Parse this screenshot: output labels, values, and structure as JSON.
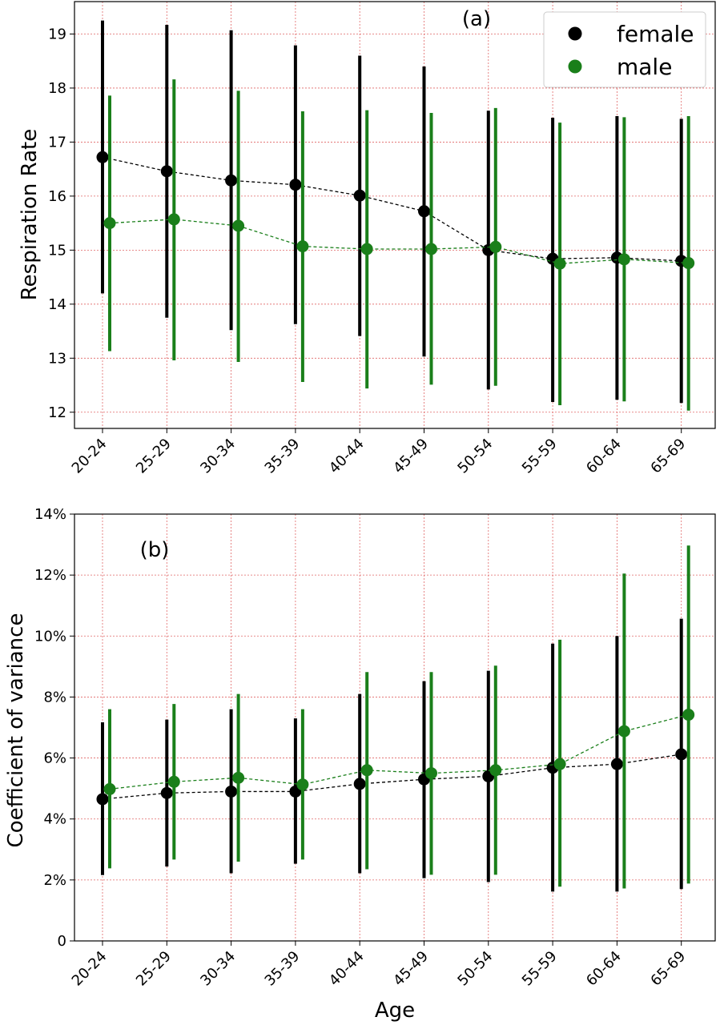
{
  "chart_data": [
    {
      "type": "line",
      "panel_label": "(a)",
      "title": "",
      "xlabel": "",
      "ylabel": "Respiration Rate",
      "categories": [
        "20-24",
        "25-29",
        "30-34",
        "35-39",
        "40-44",
        "45-49",
        "50-54",
        "55-59",
        "60-64",
        "65-69"
      ],
      "ylim": [
        11.7,
        19.6
      ],
      "yticks": [
        12,
        13,
        14,
        15,
        16,
        17,
        18,
        19
      ],
      "ytick_labels": [
        "12",
        "13",
        "14",
        "15",
        "16",
        "17",
        "18",
        "19"
      ],
      "grid": true,
      "legend": "top-right",
      "series": [
        {
          "name": "female",
          "color": "#000000",
          "values": [
            16.72,
            16.46,
            16.29,
            16.21,
            16.01,
            15.72,
            15.0,
            14.84,
            14.86,
            14.8
          ],
          "err_low": [
            14.2,
            13.75,
            13.52,
            13.63,
            13.41,
            13.03,
            12.42,
            12.19,
            12.23,
            12.17
          ],
          "err_high": [
            19.25,
            19.17,
            19.07,
            18.79,
            18.6,
            18.4,
            17.58,
            17.45,
            17.48,
            17.43
          ]
        },
        {
          "name": "male",
          "color": "#1a7f1a",
          "values": [
            15.5,
            15.57,
            15.45,
            15.07,
            15.02,
            15.02,
            15.06,
            14.75,
            14.83,
            14.76
          ],
          "err_low": [
            13.13,
            12.96,
            12.93,
            12.56,
            12.44,
            12.51,
            12.49,
            12.13,
            12.2,
            12.03
          ],
          "err_high": [
            17.86,
            18.16,
            17.95,
            17.57,
            17.59,
            17.54,
            17.63,
            17.36,
            17.46,
            17.48
          ]
        }
      ]
    },
    {
      "type": "line",
      "panel_label": "(b)",
      "title": "",
      "xlabel": "Age",
      "ylabel": "Coefficient of variance",
      "categories": [
        "20-24",
        "25-29",
        "30-34",
        "35-39",
        "40-44",
        "45-49",
        "50-54",
        "55-59",
        "60-64",
        "65-69"
      ],
      "ylim": [
        0,
        14
      ],
      "yticks": [
        0,
        2,
        4,
        6,
        8,
        10,
        12,
        14
      ],
      "ytick_labels": [
        "0",
        "2%",
        "4%",
        "6%",
        "8%",
        "10%",
        "12%",
        "14%"
      ],
      "grid": true,
      "series": [
        {
          "name": "female",
          "color": "#000000",
          "values": [
            4.65,
            4.85,
            4.9,
            4.9,
            5.15,
            5.3,
            5.4,
            5.68,
            5.8,
            6.12
          ],
          "err_low": [
            2.16,
            2.44,
            2.22,
            2.53,
            2.22,
            2.06,
            1.93,
            1.62,
            1.62,
            1.7
          ],
          "err_high": [
            7.17,
            7.26,
            7.6,
            7.3,
            8.1,
            8.52,
            8.86,
            9.75,
            10.0,
            10.57
          ]
        },
        {
          "name": "male",
          "color": "#1a7f1a",
          "values": [
            4.98,
            5.22,
            5.35,
            5.13,
            5.6,
            5.5,
            5.6,
            5.8,
            6.88,
            7.42
          ],
          "err_low": [
            2.38,
            2.67,
            2.6,
            2.67,
            2.35,
            2.17,
            2.17,
            1.78,
            1.72,
            1.88
          ],
          "err_high": [
            7.6,
            7.77,
            8.1,
            7.6,
            8.82,
            8.82,
            9.03,
            9.88,
            12.05,
            12.97
          ]
        }
      ]
    }
  ]
}
